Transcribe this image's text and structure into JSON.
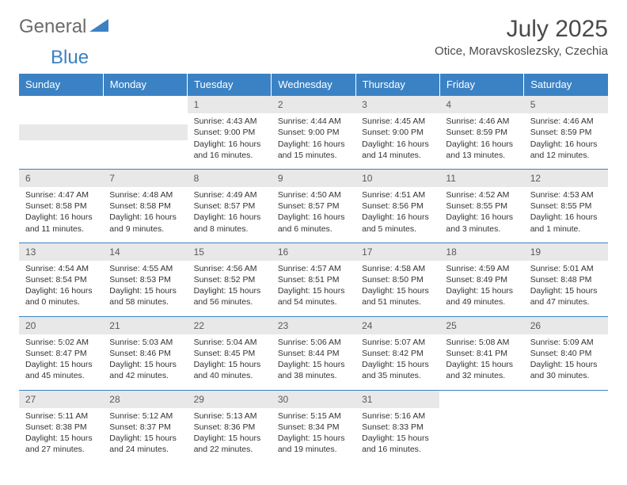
{
  "logo": {
    "text1": "General",
    "text2": "Blue"
  },
  "title": "July 2025",
  "location": "Otice, Moravskoslezsky, Czechia",
  "weekdays": [
    "Sunday",
    "Monday",
    "Tuesday",
    "Wednesday",
    "Thursday",
    "Friday",
    "Saturday"
  ],
  "colors": {
    "header_bg": "#3b82c4",
    "header_text": "#ffffff",
    "daynum_bg": "#e8e8e8",
    "border": "#3b82c4",
    "body_text": "#333333",
    "title_text": "#4a4a4a"
  },
  "weeks": [
    [
      null,
      null,
      {
        "num": "1",
        "sunrise": "4:43 AM",
        "sunset": "9:00 PM",
        "daylight": "16 hours and 16 minutes."
      },
      {
        "num": "2",
        "sunrise": "4:44 AM",
        "sunset": "9:00 PM",
        "daylight": "16 hours and 15 minutes."
      },
      {
        "num": "3",
        "sunrise": "4:45 AM",
        "sunset": "9:00 PM",
        "daylight": "16 hours and 14 minutes."
      },
      {
        "num": "4",
        "sunrise": "4:46 AM",
        "sunset": "8:59 PM",
        "daylight": "16 hours and 13 minutes."
      },
      {
        "num": "5",
        "sunrise": "4:46 AM",
        "sunset": "8:59 PM",
        "daylight": "16 hours and 12 minutes."
      }
    ],
    [
      {
        "num": "6",
        "sunrise": "4:47 AM",
        "sunset": "8:58 PM",
        "daylight": "16 hours and 11 minutes."
      },
      {
        "num": "7",
        "sunrise": "4:48 AM",
        "sunset": "8:58 PM",
        "daylight": "16 hours and 9 minutes."
      },
      {
        "num": "8",
        "sunrise": "4:49 AM",
        "sunset": "8:57 PM",
        "daylight": "16 hours and 8 minutes."
      },
      {
        "num": "9",
        "sunrise": "4:50 AM",
        "sunset": "8:57 PM",
        "daylight": "16 hours and 6 minutes."
      },
      {
        "num": "10",
        "sunrise": "4:51 AM",
        "sunset": "8:56 PM",
        "daylight": "16 hours and 5 minutes."
      },
      {
        "num": "11",
        "sunrise": "4:52 AM",
        "sunset": "8:55 PM",
        "daylight": "16 hours and 3 minutes."
      },
      {
        "num": "12",
        "sunrise": "4:53 AM",
        "sunset": "8:55 PM",
        "daylight": "16 hours and 1 minute."
      }
    ],
    [
      {
        "num": "13",
        "sunrise": "4:54 AM",
        "sunset": "8:54 PM",
        "daylight": "16 hours and 0 minutes."
      },
      {
        "num": "14",
        "sunrise": "4:55 AM",
        "sunset": "8:53 PM",
        "daylight": "15 hours and 58 minutes."
      },
      {
        "num": "15",
        "sunrise": "4:56 AM",
        "sunset": "8:52 PM",
        "daylight": "15 hours and 56 minutes."
      },
      {
        "num": "16",
        "sunrise": "4:57 AM",
        "sunset": "8:51 PM",
        "daylight": "15 hours and 54 minutes."
      },
      {
        "num": "17",
        "sunrise": "4:58 AM",
        "sunset": "8:50 PM",
        "daylight": "15 hours and 51 minutes."
      },
      {
        "num": "18",
        "sunrise": "4:59 AM",
        "sunset": "8:49 PM",
        "daylight": "15 hours and 49 minutes."
      },
      {
        "num": "19",
        "sunrise": "5:01 AM",
        "sunset": "8:48 PM",
        "daylight": "15 hours and 47 minutes."
      }
    ],
    [
      {
        "num": "20",
        "sunrise": "5:02 AM",
        "sunset": "8:47 PM",
        "daylight": "15 hours and 45 minutes."
      },
      {
        "num": "21",
        "sunrise": "5:03 AM",
        "sunset": "8:46 PM",
        "daylight": "15 hours and 42 minutes."
      },
      {
        "num": "22",
        "sunrise": "5:04 AM",
        "sunset": "8:45 PM",
        "daylight": "15 hours and 40 minutes."
      },
      {
        "num": "23",
        "sunrise": "5:06 AM",
        "sunset": "8:44 PM",
        "daylight": "15 hours and 38 minutes."
      },
      {
        "num": "24",
        "sunrise": "5:07 AM",
        "sunset": "8:42 PM",
        "daylight": "15 hours and 35 minutes."
      },
      {
        "num": "25",
        "sunrise": "5:08 AM",
        "sunset": "8:41 PM",
        "daylight": "15 hours and 32 minutes."
      },
      {
        "num": "26",
        "sunrise": "5:09 AM",
        "sunset": "8:40 PM",
        "daylight": "15 hours and 30 minutes."
      }
    ],
    [
      {
        "num": "27",
        "sunrise": "5:11 AM",
        "sunset": "8:38 PM",
        "daylight": "15 hours and 27 minutes."
      },
      {
        "num": "28",
        "sunrise": "5:12 AM",
        "sunset": "8:37 PM",
        "daylight": "15 hours and 24 minutes."
      },
      {
        "num": "29",
        "sunrise": "5:13 AM",
        "sunset": "8:36 PM",
        "daylight": "15 hours and 22 minutes."
      },
      {
        "num": "30",
        "sunrise": "5:15 AM",
        "sunset": "8:34 PM",
        "daylight": "15 hours and 19 minutes."
      },
      {
        "num": "31",
        "sunrise": "5:16 AM",
        "sunset": "8:33 PM",
        "daylight": "15 hours and 16 minutes."
      },
      null,
      null
    ]
  ],
  "labels": {
    "sunrise": "Sunrise:",
    "sunset": "Sunset:",
    "daylight": "Daylight:"
  }
}
